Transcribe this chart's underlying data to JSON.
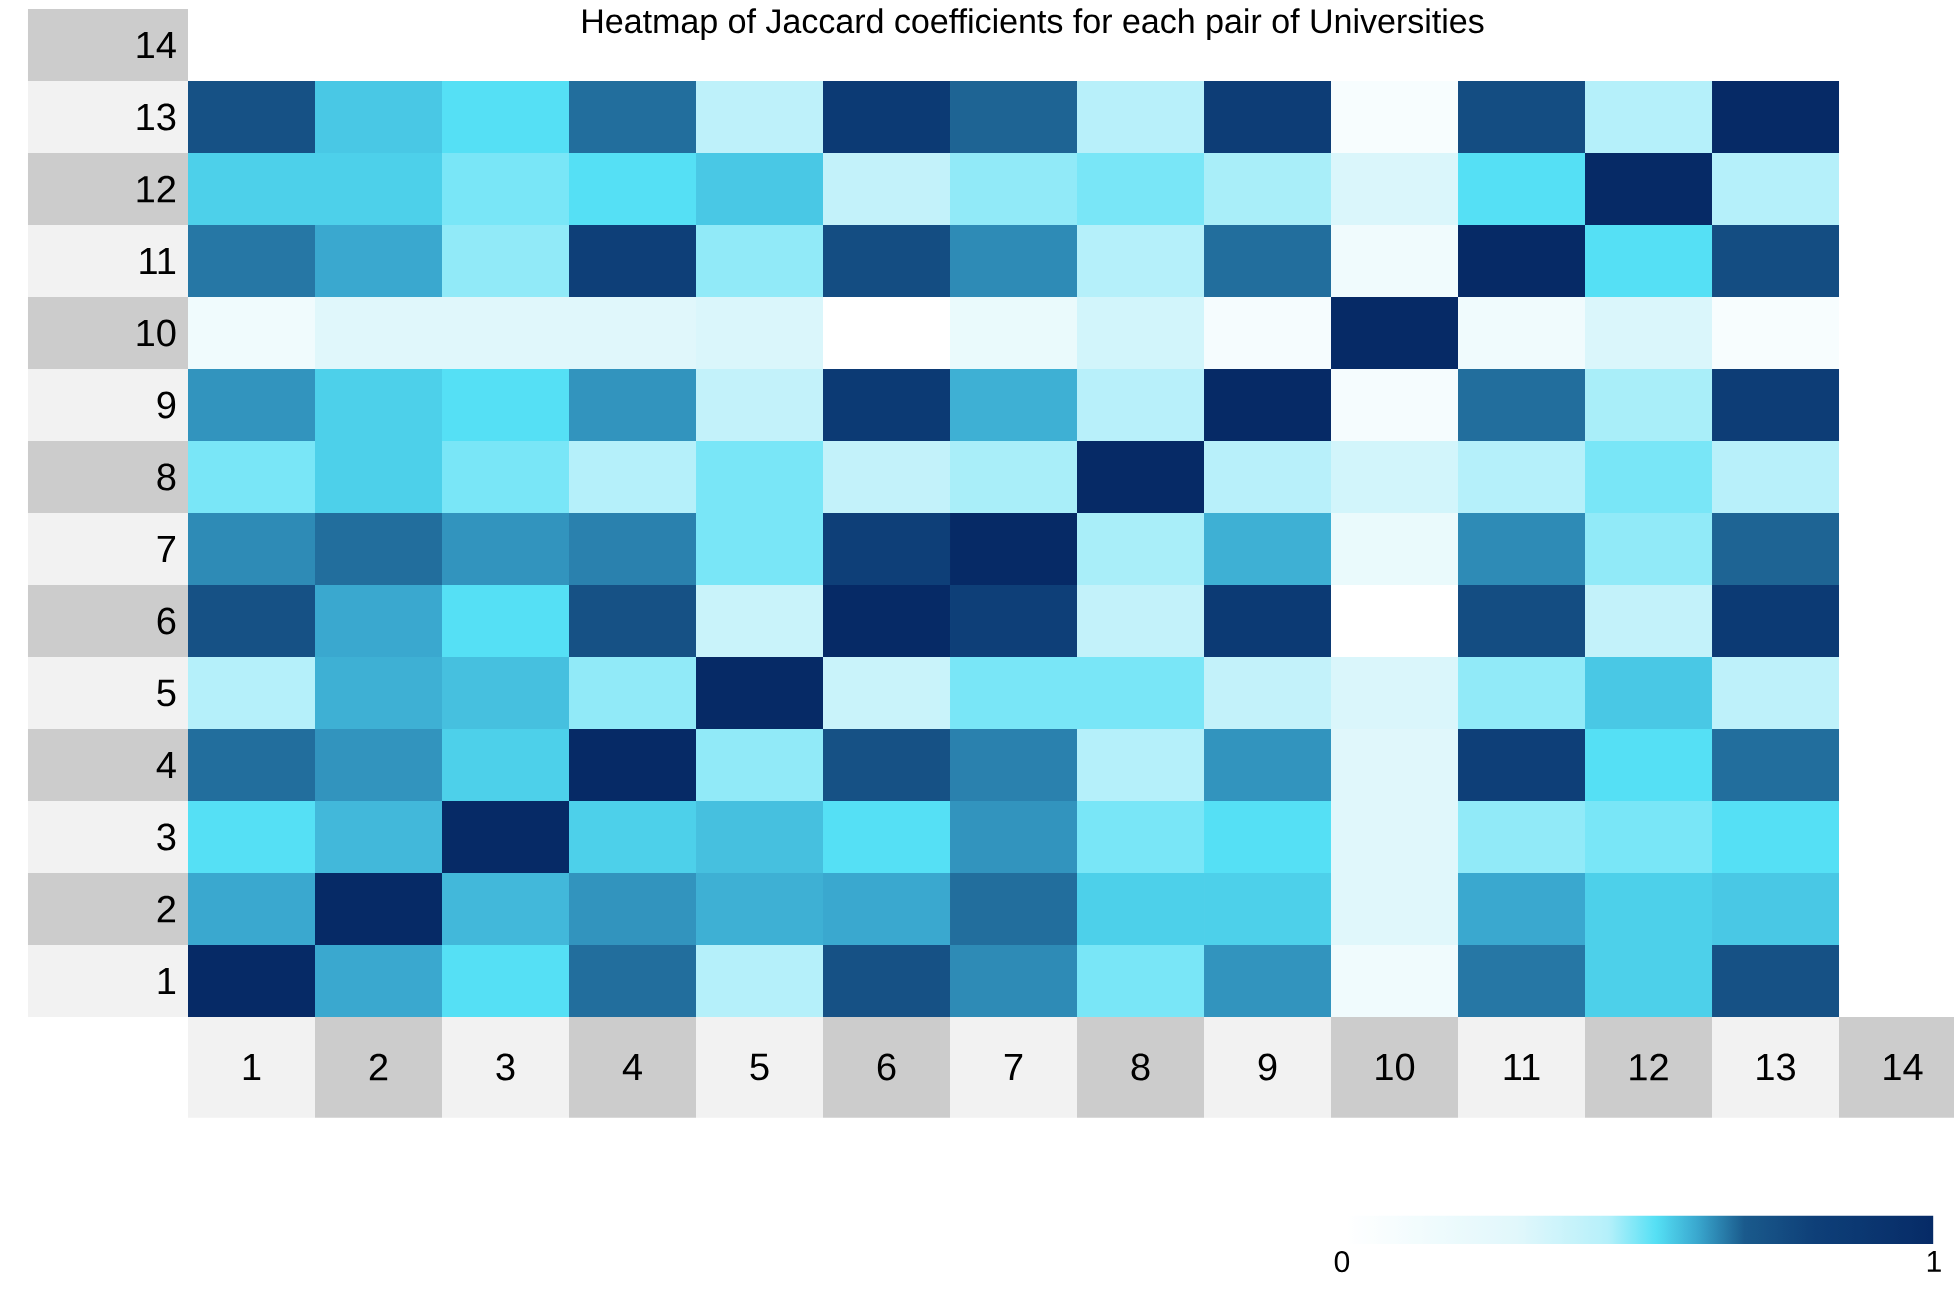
{
  "chart_data": {
    "type": "heatmap",
    "title": "Heatmap of Jaccard coefficients for each pair of Universities",
    "categories": [
      "1",
      "2",
      "3",
      "4",
      "5",
      "6",
      "7",
      "8",
      "9",
      "10",
      "11",
      "12",
      "13",
      "14"
    ],
    "y_categories": [
      "14",
      "13",
      "12",
      "11",
      "10",
      "9",
      "8",
      "7",
      "6",
      "5",
      "4",
      "3",
      "2",
      "1"
    ],
    "cells": [
      [
        null,
        null,
        null,
        null,
        null,
        null,
        null,
        null,
        null,
        null,
        null,
        null,
        null,
        null
      ],
      [
        0.72,
        0.56,
        0.53,
        0.66,
        0.42,
        0.85,
        0.67,
        0.44,
        0.82,
        0.08,
        0.74,
        0.45,
        1,
        null
      ],
      [
        0.55,
        0.55,
        0.5,
        0.53,
        0.56,
        0.4,
        0.48,
        0.5,
        0.46,
        0.32,
        0.53,
        1,
        0.45,
        null
      ],
      [
        0.65,
        0.6,
        0.48,
        0.8,
        0.48,
        0.74,
        0.63,
        0.45,
        0.66,
        0.15,
        1,
        0.53,
        0.74,
        null
      ],
      [
        0.15,
        0.3,
        0.3,
        0.3,
        0.32,
        0,
        0.2,
        0.35,
        0.1,
        1,
        0.15,
        0.32,
        0.08,
        null
      ],
      [
        0.62,
        0.55,
        0.53,
        0.62,
        0.4,
        0.85,
        0.59,
        0.44,
        1,
        0.1,
        0.66,
        0.46,
        0.82,
        null
      ],
      [
        0.5,
        0.55,
        0.5,
        0.45,
        0.5,
        0.4,
        0.46,
        1,
        0.44,
        0.35,
        0.45,
        0.5,
        0.44,
        null
      ],
      [
        0.63,
        0.66,
        0.62,
        0.64,
        0.5,
        0.8,
        1,
        0.46,
        0.59,
        0.2,
        0.63,
        0.48,
        0.67,
        null
      ],
      [
        0.72,
        0.6,
        0.53,
        0.72,
        0.38,
        1,
        0.8,
        0.4,
        0.85,
        0,
        0.74,
        0.4,
        0.85,
        null
      ],
      [
        0.45,
        0.59,
        0.57,
        0.48,
        1,
        0.38,
        0.5,
        0.5,
        0.4,
        0.32,
        0.48,
        0.56,
        0.42,
        null
      ],
      [
        0.66,
        0.62,
        0.55,
        1,
        0.48,
        0.72,
        0.64,
        0.45,
        0.62,
        0.3,
        0.8,
        0.53,
        0.66,
        null
      ],
      [
        0.53,
        0.58,
        1,
        0.55,
        0.57,
        0.53,
        0.62,
        0.5,
        0.53,
        0.3,
        0.48,
        0.5,
        0.53,
        null
      ],
      [
        0.6,
        1,
        0.58,
        0.62,
        0.59,
        0.6,
        0.66,
        0.55,
        0.55,
        0.3,
        0.6,
        0.55,
        0.56,
        null
      ],
      [
        1,
        0.6,
        0.53,
        0.66,
        0.45,
        0.72,
        0.63,
        0.5,
        0.62,
        0.15,
        0.65,
        0.55,
        0.72,
        null
      ]
    ],
    "clim": [
      0,
      1
    ],
    "cticks": [
      {
        "value": 0,
        "label": "0"
      },
      {
        "value": 1,
        "label": "1"
      }
    ]
  }
}
